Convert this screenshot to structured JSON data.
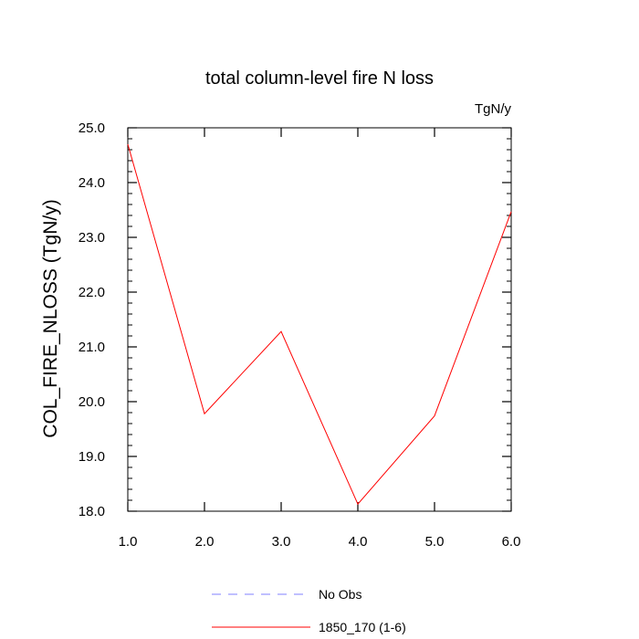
{
  "chart_data": {
    "type": "line",
    "title": "total column-level fire N loss",
    "units": "TgN/y",
    "ylabel": "COL_FIRE_NLOSS  (TgN/y)",
    "xlabel": "",
    "xlim": [
      1.0,
      6.0
    ],
    "ylim": [
      18.0,
      25.0
    ],
    "xticks": [
      "1.0",
      "2.0",
      "3.0",
      "4.0",
      "5.0",
      "6.0"
    ],
    "yticks": [
      "18.0",
      "19.0",
      "20.0",
      "21.0",
      "22.0",
      "23.0",
      "24.0",
      "25.0"
    ],
    "grid": false,
    "legend_position": "bottom-center",
    "series": [
      {
        "name": "1850_170 (1-6)",
        "color": "#ff0000",
        "dash": "solid",
        "x": [
          1.0,
          2.0,
          3.0,
          4.0,
          5.0,
          6.0
        ],
        "y": [
          24.7,
          19.78,
          21.28,
          18.13,
          19.74,
          23.47
        ]
      }
    ],
    "legend": [
      {
        "label": "No Obs",
        "color": "#8080ff",
        "dash": "dashed"
      },
      {
        "label": "1850_170 (1-6)",
        "color": "#ff0000",
        "dash": "solid"
      }
    ]
  }
}
